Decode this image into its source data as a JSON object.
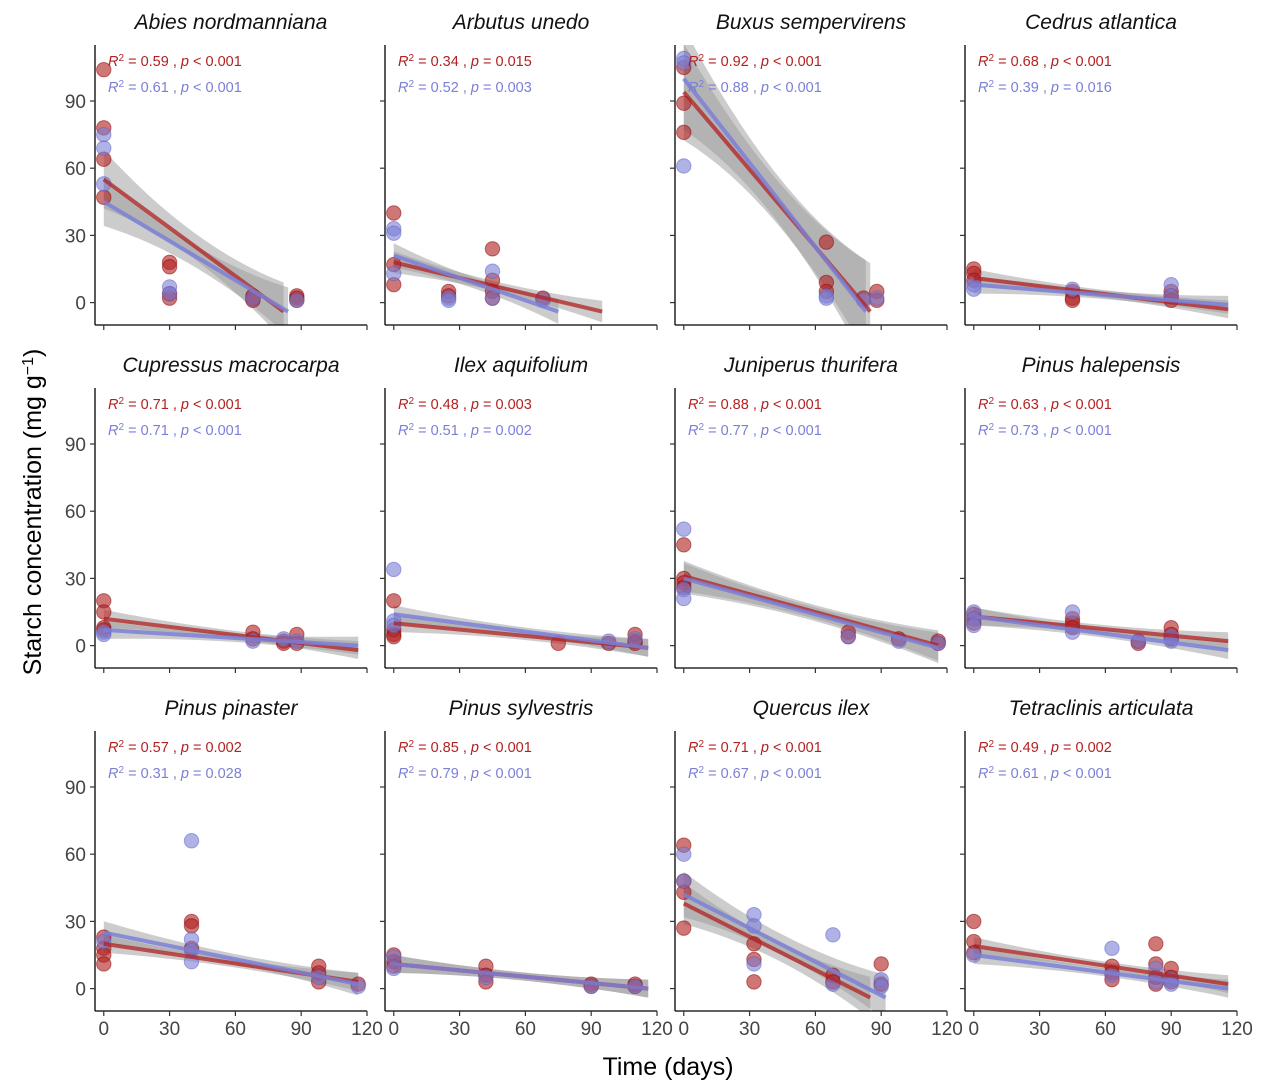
{
  "chart_data": {
    "type": "scatter",
    "layout": "facet-grid 3x4",
    "xlabel": "Time (days)",
    "ylabel": "Starch concentration (mg g",
    "ylabel_superscript": "−1",
    "ylabel_suffix": ")",
    "xlim": [
      -4,
      120
    ],
    "ylim": [
      -10,
      115
    ],
    "xticks": [
      0,
      30,
      60,
      90,
      120
    ],
    "yticks": [
      0,
      30,
      60,
      90
    ],
    "grid": false,
    "colors": {
      "red": "#b22222",
      "blue": "#7b7fd6",
      "ribbon": "#9a9a9a"
    },
    "stat_r2_label": "R",
    "stat_r2_exp": "2",
    "stat_p_label": "p",
    "panels": [
      {
        "title": "Abies nordmanniana",
        "red_stats": {
          "r2": "0.59",
          "p": "< 0.001"
        },
        "blue_stats": {
          "r2": "0.61",
          "p": "< 0.001"
        },
        "red_fit": {
          "x": [
            0,
            82
          ],
          "y": [
            55,
            -4
          ]
        },
        "blue_fit": {
          "x": [
            0,
            84
          ],
          "y": [
            45,
            -4
          ]
        },
        "red_points": [
          [
            0,
            104
          ],
          [
            0,
            78
          ],
          [
            0,
            64
          ],
          [
            0,
            47
          ],
          [
            30,
            18
          ],
          [
            30,
            16
          ],
          [
            30,
            4
          ],
          [
            30,
            2
          ],
          [
            68,
            3
          ],
          [
            68,
            2
          ],
          [
            68,
            1
          ],
          [
            88,
            3
          ],
          [
            88,
            2
          ],
          [
            88,
            1
          ]
        ],
        "blue_points": [
          [
            0,
            75
          ],
          [
            0,
            69
          ],
          [
            0,
            53
          ],
          [
            30,
            7
          ],
          [
            30,
            4
          ],
          [
            68,
            2
          ],
          [
            88,
            1
          ]
        ]
      },
      {
        "title": "Arbutus unedo",
        "red_stats": {
          "r2": "0.34",
          "p": "= 0.015"
        },
        "blue_stats": {
          "r2": "0.52",
          "p": "= 0.003"
        },
        "red_fit": {
          "x": [
            0,
            95
          ],
          "y": [
            18,
            -4
          ]
        },
        "blue_fit": {
          "x": [
            0,
            75
          ],
          "y": [
            21,
            -4
          ]
        },
        "red_points": [
          [
            0,
            40
          ],
          [
            0,
            17
          ],
          [
            0,
            8
          ],
          [
            25,
            5
          ],
          [
            25,
            3
          ],
          [
            45,
            24
          ],
          [
            45,
            10
          ],
          [
            45,
            5
          ],
          [
            45,
            2
          ],
          [
            68,
            2
          ]
        ],
        "blue_points": [
          [
            0,
            33
          ],
          [
            0,
            31
          ],
          [
            0,
            13
          ],
          [
            25,
            2
          ],
          [
            25,
            1
          ],
          [
            45,
            14
          ],
          [
            45,
            2
          ],
          [
            68,
            1
          ]
        ]
      },
      {
        "title": "Buxus sempervirens",
        "red_stats": {
          "r2": "0.92",
          "p": "< 0.001"
        },
        "blue_stats": {
          "r2": "0.88",
          "p": "< 0.001"
        },
        "red_fit": {
          "x": [
            0,
            85
          ],
          "y": [
            94,
            -4
          ]
        },
        "blue_fit": {
          "x": [
            0,
            83
          ],
          "y": [
            100,
            -4
          ]
        },
        "red_points": [
          [
            0,
            105
          ],
          [
            0,
            89
          ],
          [
            0,
            76
          ],
          [
            65,
            27
          ],
          [
            65,
            9
          ],
          [
            65,
            5
          ],
          [
            82,
            2
          ],
          [
            88,
            5
          ],
          [
            88,
            1
          ]
        ],
        "blue_points": [
          [
            0,
            109
          ],
          [
            0,
            107
          ],
          [
            0,
            61
          ],
          [
            65,
            3
          ],
          [
            65,
            2
          ],
          [
            82,
            1
          ],
          [
            88,
            2
          ]
        ]
      },
      {
        "title": "Cedrus atlantica",
        "red_stats": {
          "r2": "0.68",
          "p": "< 0.001"
        },
        "blue_stats": {
          "r2": "0.39",
          "p": "= 0.016"
        },
        "red_fit": {
          "x": [
            0,
            116
          ],
          "y": [
            11,
            -3
          ]
        },
        "blue_fit": {
          "x": [
            0,
            116
          ],
          "y": [
            8,
            -1
          ]
        },
        "red_points": [
          [
            0,
            15
          ],
          [
            0,
            13
          ],
          [
            0,
            10
          ],
          [
            45,
            5
          ],
          [
            45,
            2
          ],
          [
            45,
            1
          ],
          [
            90,
            5
          ],
          [
            90,
            3
          ],
          [
            90,
            1
          ]
        ],
        "blue_points": [
          [
            0,
            8
          ],
          [
            0,
            6
          ],
          [
            45,
            6
          ],
          [
            90,
            8
          ],
          [
            90,
            3
          ]
        ]
      },
      {
        "title": "Cupressus macrocarpa",
        "red_stats": {
          "r2": "0.71",
          "p": "< 0.001"
        },
        "blue_stats": {
          "r2": "0.71",
          "p": "< 0.001"
        },
        "red_fit": {
          "x": [
            0,
            116
          ],
          "y": [
            12,
            -2
          ]
        },
        "blue_fit": {
          "x": [
            0,
            116
          ],
          "y": [
            7,
            0
          ]
        },
        "red_points": [
          [
            0,
            20
          ],
          [
            0,
            15
          ],
          [
            0,
            8
          ],
          [
            0,
            7
          ],
          [
            68,
            6
          ],
          [
            68,
            3
          ],
          [
            82,
            2
          ],
          [
            82,
            1
          ],
          [
            88,
            5
          ],
          [
            88,
            1
          ]
        ],
        "blue_points": [
          [
            0,
            6
          ],
          [
            0,
            5
          ],
          [
            68,
            2
          ],
          [
            82,
            3
          ],
          [
            88,
            2
          ]
        ]
      },
      {
        "title": "Ilex aquifolium",
        "red_stats": {
          "r2": "0.48",
          "p": "= 0.003"
        },
        "blue_stats": {
          "r2": "0.51",
          "p": "= 0.002"
        },
        "red_fit": {
          "x": [
            0,
            116
          ],
          "y": [
            10,
            -1
          ]
        },
        "blue_fit": {
          "x": [
            0,
            116
          ],
          "y": [
            14,
            -1
          ]
        },
        "red_points": [
          [
            0,
            20
          ],
          [
            0,
            7
          ],
          [
            0,
            5
          ],
          [
            0,
            4
          ],
          [
            75,
            1
          ],
          [
            98,
            1
          ],
          [
            110,
            5
          ],
          [
            110,
            2
          ],
          [
            110,
            1
          ]
        ],
        "blue_points": [
          [
            0,
            34
          ],
          [
            0,
            11
          ],
          [
            0,
            9
          ],
          [
            98,
            2
          ],
          [
            110,
            3
          ]
        ]
      },
      {
        "title": "Juniperus thurifera",
        "red_stats": {
          "r2": "0.88",
          "p": "< 0.001"
        },
        "blue_stats": {
          "r2": "0.77",
          "p": "< 0.001"
        },
        "red_fit": {
          "x": [
            0,
            116
          ],
          "y": [
            31,
            0
          ]
        },
        "blue_fit": {
          "x": [
            0,
            116
          ],
          "y": [
            30,
            -1
          ]
        },
        "red_points": [
          [
            0,
            45
          ],
          [
            0,
            30
          ],
          [
            0,
            28
          ],
          [
            0,
            26
          ],
          [
            75,
            6
          ],
          [
            75,
            4
          ],
          [
            98,
            3
          ],
          [
            116,
            2
          ],
          [
            116,
            1
          ]
        ],
        "blue_points": [
          [
            0,
            52
          ],
          [
            0,
            25
          ],
          [
            0,
            21
          ],
          [
            75,
            4
          ],
          [
            98,
            2
          ],
          [
            116,
            1
          ]
        ]
      },
      {
        "title": "Pinus halepensis",
        "red_stats": {
          "r2": "0.63",
          "p": "< 0.001"
        },
        "blue_stats": {
          "r2": "0.73",
          "p": "< 0.001"
        },
        "red_fit": {
          "x": [
            0,
            116
          ],
          "y": [
            13,
            2
          ]
        },
        "blue_fit": {
          "x": [
            0,
            116
          ],
          "y": [
            13,
            -2
          ]
        },
        "red_points": [
          [
            0,
            14
          ],
          [
            0,
            12
          ],
          [
            0,
            10
          ],
          [
            45,
            12
          ],
          [
            45,
            10
          ],
          [
            45,
            8
          ],
          [
            75,
            2
          ],
          [
            75,
            1
          ],
          [
            90,
            8
          ],
          [
            90,
            5
          ],
          [
            90,
            3
          ]
        ],
        "blue_points": [
          [
            0,
            15
          ],
          [
            0,
            12
          ],
          [
            0,
            9
          ],
          [
            45,
            15
          ],
          [
            45,
            6
          ],
          [
            75,
            2
          ],
          [
            90,
            4
          ],
          [
            90,
            2
          ]
        ]
      },
      {
        "title": "Pinus pinaster",
        "red_stats": {
          "r2": "0.57",
          "p": "= 0.002"
        },
        "blue_stats": {
          "r2": "0.31",
          "p": "= 0.028"
        },
        "red_fit": {
          "x": [
            0,
            116
          ],
          "y": [
            20,
            3
          ]
        },
        "blue_fit": {
          "x": [
            0,
            116
          ],
          "y": [
            25,
            2
          ]
        },
        "red_points": [
          [
            0,
            23
          ],
          [
            0,
            18
          ],
          [
            0,
            15
          ],
          [
            0,
            11
          ],
          [
            40,
            30
          ],
          [
            40,
            28
          ],
          [
            40,
            18
          ],
          [
            98,
            10
          ],
          [
            98,
            7
          ],
          [
            98,
            3
          ],
          [
            116,
            2
          ]
        ],
        "blue_points": [
          [
            0,
            21
          ],
          [
            40,
            66
          ],
          [
            40,
            22
          ],
          [
            40,
            17
          ],
          [
            40,
            12
          ],
          [
            98,
            5
          ],
          [
            116,
            1
          ]
        ]
      },
      {
        "title": "Pinus sylvestris",
        "red_stats": {
          "r2": "0.85",
          "p": "< 0.001"
        },
        "blue_stats": {
          "r2": "0.79",
          "p": "< 0.001"
        },
        "red_fit": {
          "x": [
            0,
            116
          ],
          "y": [
            11,
            0
          ]
        },
        "blue_fit": {
          "x": [
            0,
            116
          ],
          "y": [
            11,
            0
          ]
        },
        "red_points": [
          [
            0,
            15
          ],
          [
            0,
            12
          ],
          [
            0,
            10
          ],
          [
            42,
            10
          ],
          [
            42,
            6
          ],
          [
            42,
            3
          ],
          [
            90,
            2
          ],
          [
            90,
            1
          ],
          [
            110,
            2
          ],
          [
            110,
            1
          ]
        ],
        "blue_points": [
          [
            0,
            14
          ],
          [
            0,
            9
          ],
          [
            42,
            5
          ],
          [
            90,
            1
          ],
          [
            110,
            1
          ]
        ]
      },
      {
        "title": "Quercus ilex",
        "red_stats": {
          "r2": "0.71",
          "p": "< 0.001"
        },
        "blue_stats": {
          "r2": "0.67",
          "p": "< 0.001"
        },
        "red_fit": {
          "x": [
            0,
            85
          ],
          "y": [
            38,
            -4
          ]
        },
        "blue_fit": {
          "x": [
            0,
            92
          ],
          "y": [
            42,
            -4
          ]
        },
        "red_points": [
          [
            0,
            64
          ],
          [
            0,
            48
          ],
          [
            0,
            43
          ],
          [
            0,
            27
          ],
          [
            32,
            20
          ],
          [
            32,
            13
          ],
          [
            32,
            3
          ],
          [
            68,
            6
          ],
          [
            68,
            3
          ],
          [
            90,
            11
          ],
          [
            90,
            2
          ]
        ],
        "blue_points": [
          [
            0,
            60
          ],
          [
            0,
            48
          ],
          [
            32,
            33
          ],
          [
            32,
            28
          ],
          [
            32,
            11
          ],
          [
            68,
            24
          ],
          [
            68,
            2
          ],
          [
            90,
            4
          ],
          [
            90,
            1
          ]
        ]
      },
      {
        "title": "Tetraclinis articulata",
        "red_stats": {
          "r2": "0.49",
          "p": "= 0.002"
        },
        "blue_stats": {
          "r2": "0.61",
          "p": "< 0.001"
        },
        "red_fit": {
          "x": [
            0,
            116
          ],
          "y": [
            19,
            2
          ]
        },
        "blue_fit": {
          "x": [
            0,
            116
          ],
          "y": [
            15,
            0
          ]
        },
        "red_points": [
          [
            0,
            30
          ],
          [
            0,
            21
          ],
          [
            0,
            16
          ],
          [
            63,
            10
          ],
          [
            63,
            7
          ],
          [
            63,
            4
          ],
          [
            83,
            20
          ],
          [
            83,
            11
          ],
          [
            83,
            5
          ],
          [
            83,
            2
          ],
          [
            90,
            9
          ],
          [
            90,
            5
          ],
          [
            90,
            3
          ]
        ],
        "blue_points": [
          [
            0,
            15
          ],
          [
            63,
            18
          ],
          [
            63,
            6
          ],
          [
            83,
            9
          ],
          [
            83,
            3
          ],
          [
            90,
            4
          ],
          [
            90,
            2
          ]
        ]
      }
    ]
  }
}
